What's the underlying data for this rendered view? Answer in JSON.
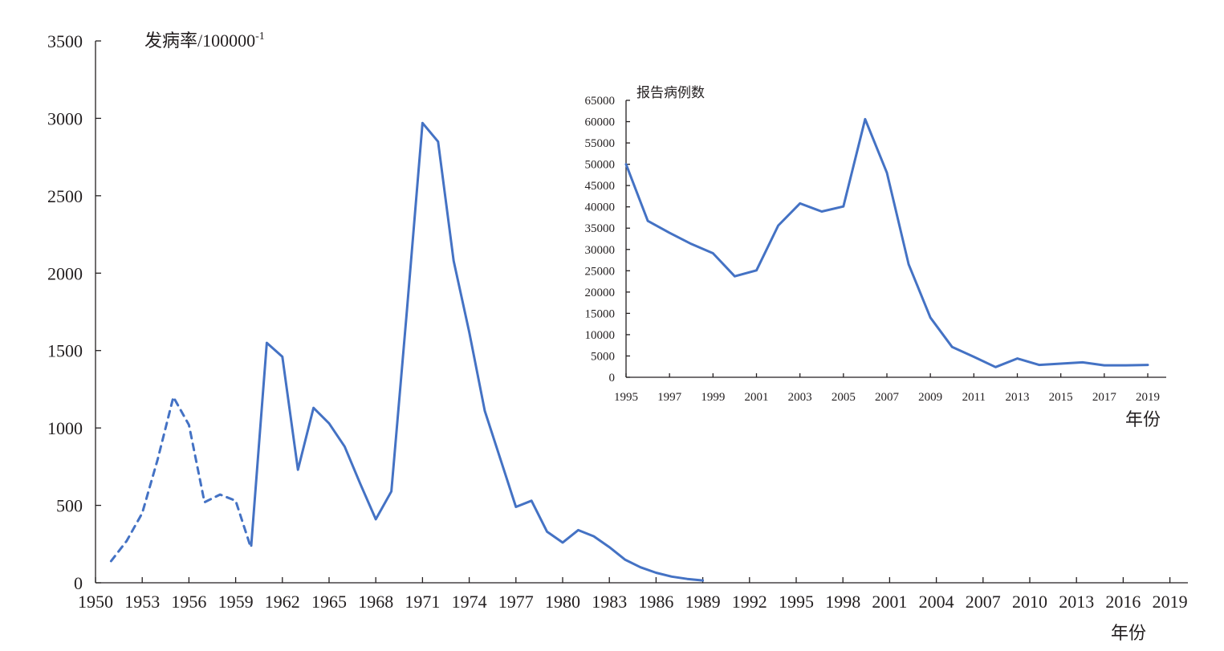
{
  "colors": {
    "series": "#4472c4",
    "axis": "#231f20",
    "background": "#ffffff"
  },
  "chart_data": [
    {
      "type": "line",
      "title": "",
      "ylabel": "发病率/100000",
      "ylabel_superscript": "-1",
      "xlabel": "年份",
      "xlim": [
        1950,
        2020
      ],
      "ylim": [
        0,
        3500
      ],
      "y_ticks": [
        0,
        500,
        1000,
        1500,
        2000,
        2500,
        3000,
        3500
      ],
      "x_ticks": [
        1950,
        1953,
        1956,
        1959,
        1962,
        1965,
        1968,
        1971,
        1974,
        1977,
        1980,
        1983,
        1986,
        1989,
        1992,
        1995,
        1998,
        2001,
        2004,
        2007,
        2010,
        2013,
        2016,
        2019
      ],
      "grid": false,
      "legend": "none",
      "series": [
        {
          "style": "dashed",
          "x": [
            1951,
            1952,
            1953,
            1954,
            1955,
            1956,
            1957,
            1958,
            1959,
            1960
          ],
          "y": [
            140,
            270,
            450,
            800,
            1200,
            1020,
            520,
            570,
            530,
            220
          ]
        },
        {
          "style": "solid",
          "x": [
            1960,
            1961,
            1962,
            1963,
            1964,
            1965,
            1966,
            1967,
            1968,
            1969,
            1970,
            1971,
            1972,
            1973,
            1974,
            1975,
            1976,
            1977,
            1978,
            1979,
            1980,
            1981,
            1982,
            1983,
            1984,
            1985,
            1986,
            1987,
            1988,
            1989
          ],
          "y": [
            240,
            1550,
            1460,
            730,
            1130,
            1030,
            880,
            640,
            410,
            590,
            1760,
            2970,
            2850,
            2080,
            1620,
            1110,
            800,
            490,
            530,
            330,
            260,
            340,
            300,
            230,
            150,
            100,
            65,
            40,
            25,
            15
          ]
        }
      ]
    },
    {
      "type": "line",
      "title": "",
      "ylabel": "报告病例数",
      "xlabel": "年份",
      "xlim": [
        1995,
        2019
      ],
      "ylim": [
        0,
        65000
      ],
      "y_ticks": [
        0,
        5000,
        10000,
        15000,
        20000,
        25000,
        30000,
        35000,
        40000,
        45000,
        50000,
        55000,
        60000,
        65000
      ],
      "x_ticks": [
        1995,
        1997,
        1999,
        2001,
        2003,
        2005,
        2007,
        2009,
        2011,
        2013,
        2015,
        2017,
        2019
      ],
      "grid": false,
      "legend": "none",
      "series": [
        {
          "style": "solid",
          "x": [
            1995,
            1996,
            1997,
            1998,
            1999,
            2000,
            2001,
            2002,
            2003,
            2004,
            2005,
            2006,
            2007,
            2008,
            2009,
            2010,
            2011,
            2012,
            2013,
            2014,
            2015,
            2016,
            2017,
            2018,
            2019
          ],
          "y": [
            50000,
            36700,
            33900,
            31300,
            29100,
            23700,
            25100,
            35600,
            40800,
            38900,
            40100,
            60600,
            48000,
            26500,
            14000,
            7100,
            4800,
            2400,
            4400,
            2900,
            3200,
            3500,
            2800,
            2800,
            2900
          ]
        }
      ]
    }
  ]
}
